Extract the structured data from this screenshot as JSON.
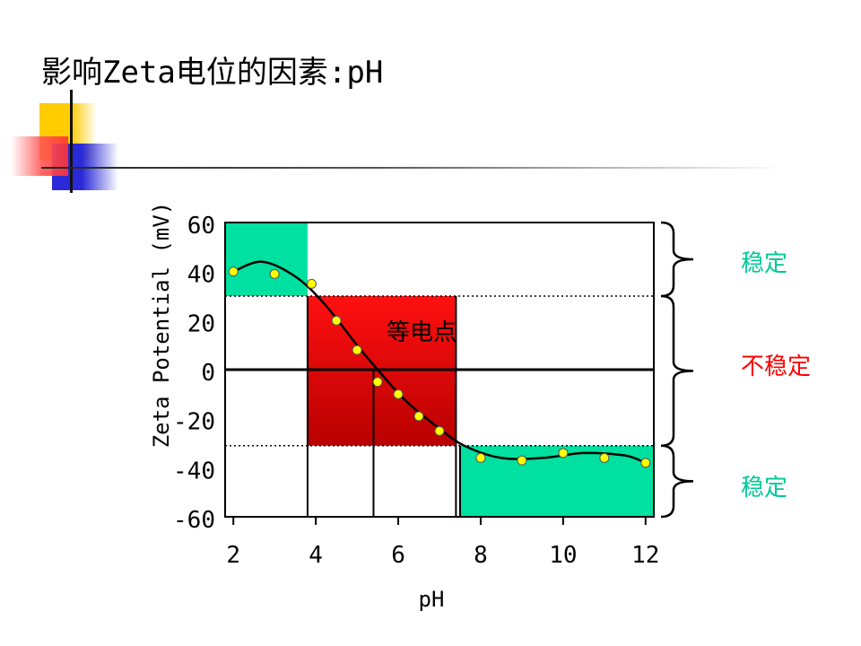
{
  "slide": {
    "title": "影响Zeta电位的因素:pH"
  },
  "colors": {
    "stable_region": "#00e0a0",
    "unstable_region_top": "#ff1010",
    "unstable_region_bottom": "#b80000",
    "point_fill": "#ffff00",
    "stable_label": "#00c896",
    "unstable_label": "#ff0000"
  },
  "chart_data": {
    "type": "scatter",
    "xlabel": "pH",
    "ylabel": "Zeta Potential (mV)",
    "xlim": [
      1.8,
      12.2
    ],
    "ylim": [
      -60,
      60
    ],
    "x_ticks": [
      2,
      4,
      6,
      8,
      10,
      12
    ],
    "y_ticks": [
      60,
      40,
      20,
      0,
      -20,
      -40,
      -60
    ],
    "x_tick_labels": [
      "2",
      "4",
      "6",
      "8",
      "10",
      "12"
    ],
    "y_tick_labels": [
      "60",
      "40",
      "20",
      "0",
      "-20",
      "-40",
      "-60"
    ],
    "points": [
      {
        "x": 2.0,
        "y": 40
      },
      {
        "x": 3.0,
        "y": 39
      },
      {
        "x": 3.9,
        "y": 35
      },
      {
        "x": 4.5,
        "y": 20
      },
      {
        "x": 5.0,
        "y": 8
      },
      {
        "x": 5.5,
        "y": -5
      },
      {
        "x": 6.0,
        "y": -10
      },
      {
        "x": 6.5,
        "y": -19
      },
      {
        "x": 7.0,
        "y": -25
      },
      {
        "x": 8.0,
        "y": -36
      },
      {
        "x": 9.0,
        "y": -37
      },
      {
        "x": 10.0,
        "y": -34
      },
      {
        "x": 11.0,
        "y": -36
      },
      {
        "x": 12.0,
        "y": -38
      }
    ],
    "curve": [
      {
        "x": 2.0,
        "y": 40
      },
      {
        "x": 2.7,
        "y": 44
      },
      {
        "x": 3.5,
        "y": 38
      },
      {
        "x": 4.2,
        "y": 27
      },
      {
        "x": 5.0,
        "y": 10
      },
      {
        "x": 5.5,
        "y": 0
      },
      {
        "x": 6.2,
        "y": -13
      },
      {
        "x": 7.0,
        "y": -24
      },
      {
        "x": 7.6,
        "y": -31
      },
      {
        "x": 8.5,
        "y": -36
      },
      {
        "x": 9.5,
        "y": -36
      },
      {
        "x": 10.5,
        "y": -34
      },
      {
        "x": 11.5,
        "y": -35
      },
      {
        "x": 12.0,
        "y": -38
      }
    ],
    "regions": [
      {
        "kind": "stable",
        "x": [
          1.8,
          3.8
        ],
        "y": [
          30,
          60
        ]
      },
      {
        "kind": "unstable",
        "x": [
          3.8,
          7.4
        ],
        "y": [
          -31,
          30
        ]
      },
      {
        "kind": "stable",
        "x": [
          7.5,
          12.2
        ],
        "y": [
          -60,
          -31
        ]
      }
    ],
    "thresholds": [
      30,
      -31
    ],
    "zero_line": 0,
    "isoelectric_point": {
      "x": 5.4,
      "label": "等电点"
    },
    "reference_x_lines": [
      3.8,
      7.4
    ],
    "annotations": [
      {
        "label": "稳定",
        "y_range": [
          30,
          60
        ],
        "status": "stable"
      },
      {
        "label": "不稳定",
        "y_range": [
          -31,
          30
        ],
        "status": "unstable"
      },
      {
        "label": "稳定",
        "y_range": [
          -60,
          -31
        ],
        "status": "stable"
      }
    ],
    "grid": false,
    "legend": "none"
  }
}
